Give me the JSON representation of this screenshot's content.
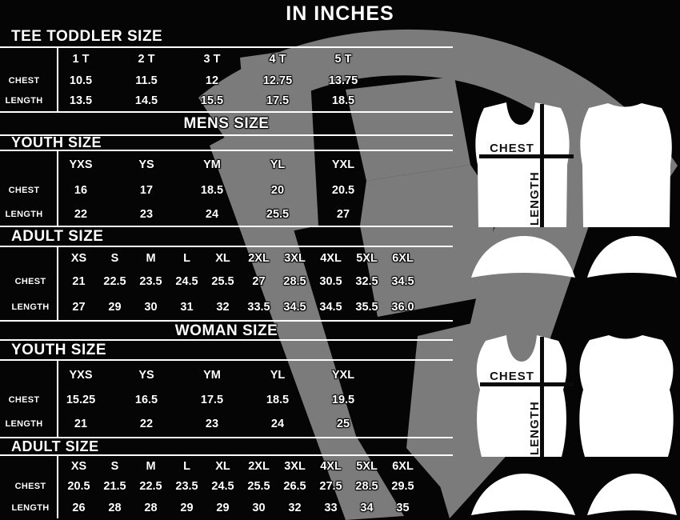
{
  "title": "IN INCHES",
  "labels": {
    "chest": "CHEST",
    "length": "LENGTH"
  },
  "headings": {
    "toddler": "TEE TODDLER SIZE",
    "mens": "MENS SIZE",
    "mens_youth": "YOUTH SIZE",
    "mens_adult": "ADULT SIZE",
    "woman": "WOMAN SIZE",
    "woman_youth": "YOUTH SIZE",
    "woman_adult": "ADULT SIZE"
  },
  "tables": {
    "toddler": {
      "sizes": [
        "1 T",
        "2 T",
        "3 T",
        "4 T",
        "5 T"
      ],
      "chest": [
        "10.5",
        "11.5",
        "12",
        "12.75",
        "13.75"
      ],
      "length": [
        "13.5",
        "14.5",
        "15.5",
        "17.5",
        "18.5"
      ]
    },
    "mens_youth": {
      "sizes": [
        "YXS",
        "YS",
        "YM",
        "YL",
        "YXL"
      ],
      "chest": [
        "16",
        "17",
        "18.5",
        "20",
        "20.5"
      ],
      "length": [
        "22",
        "23",
        "24",
        "25.5",
        "27"
      ]
    },
    "mens_adult": {
      "sizes": [
        "XS",
        "S",
        "M",
        "L",
        "XL",
        "2XL",
        "3XL",
        "4XL",
        "5XL",
        "6XL"
      ],
      "chest": [
        "21",
        "22.5",
        "23.5",
        "24.5",
        "25.5",
        "27",
        "28.5",
        "30.5",
        "32.5",
        "34.5"
      ],
      "length": [
        "27",
        "29",
        "30",
        "31",
        "32",
        "33.5",
        "34.5",
        "34.5",
        "35.5",
        "36.0"
      ]
    },
    "woman_youth": {
      "sizes": [
        "YXS",
        "YS",
        "YM",
        "YL",
        "YXL"
      ],
      "chest": [
        "15.25",
        "16.5",
        "17.5",
        "18.5",
        "19.5"
      ],
      "length": [
        "21",
        "22",
        "23",
        "24",
        "25"
      ]
    },
    "woman_adult": {
      "sizes": [
        "XS",
        "S",
        "M",
        "L",
        "XL",
        "2XL",
        "3XL",
        "4XL",
        "5XL",
        "6XL"
      ],
      "chest": [
        "20.5",
        "21.5",
        "22.5",
        "23.5",
        "24.5",
        "25.5",
        "26.5",
        "27.5",
        "28.5",
        "29.5"
      ],
      "length": [
        "26",
        "28",
        "28",
        "29",
        "29",
        "30",
        "32",
        "33",
        "34",
        "35"
      ]
    }
  },
  "diagram": {
    "chest": "CHEST",
    "length": "LENGTH"
  },
  "colors": {
    "background": "#050505",
    "watermark": "#7b7b7b",
    "text": "#ffffff",
    "table_line": "#ffffff",
    "shirt_fill": "#ffffff",
    "measure_line": "#0a0a0a"
  }
}
